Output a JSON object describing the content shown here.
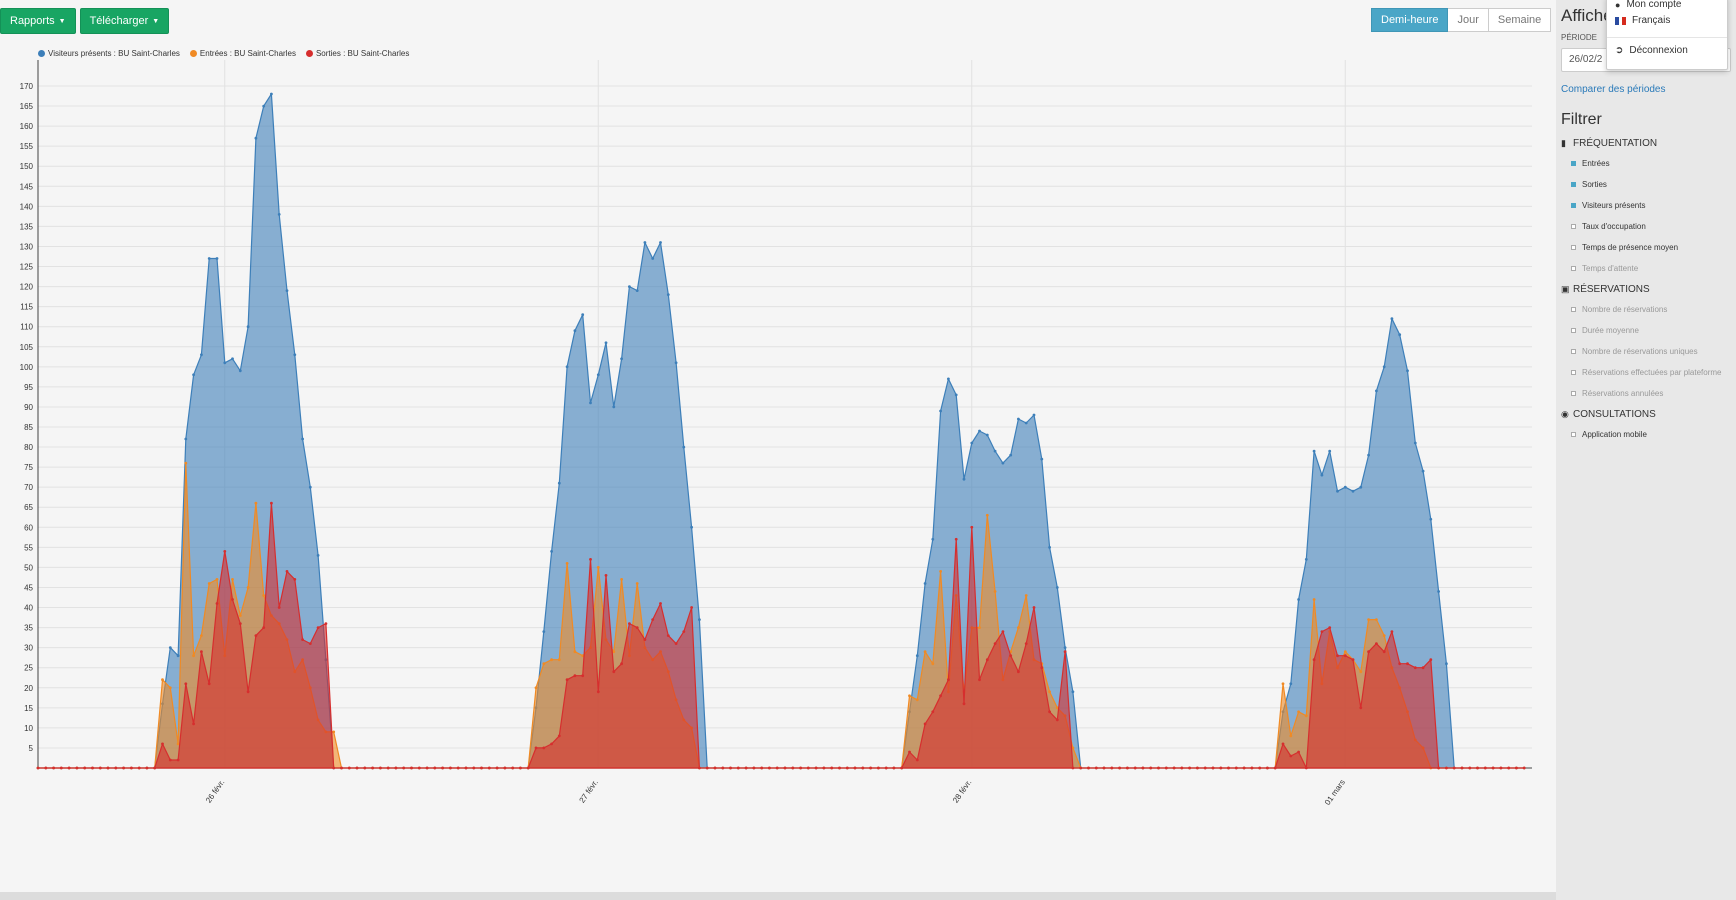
{
  "toolbar": {
    "reports_label": "Rapports",
    "download_label": "Télécharger"
  },
  "granularity": {
    "options": [
      "Demi-heure",
      "Jour",
      "Semaine"
    ],
    "active": "Demi-heure"
  },
  "side": {
    "title": "Affiche",
    "periode_label": "PÉRIODE",
    "periode_value": "26/02/2",
    "compare_link": "Comparer des périodes",
    "filter_title": "Filtrer",
    "sections": [
      {
        "icon": "bar-chart-icon",
        "glyph": "▮",
        "label": "FRÉQUENTATION",
        "options": [
          {
            "label": "Entrées",
            "checked": true,
            "disabled": false
          },
          {
            "label": "Sorties",
            "checked": true,
            "disabled": false
          },
          {
            "label": "Visiteurs présents",
            "checked": true,
            "disabled": false
          },
          {
            "label": "Taux d'occupation",
            "checked": false,
            "disabled": false
          },
          {
            "label": "Temps de présence moyen",
            "checked": false,
            "disabled": false
          },
          {
            "label": "Temps d'attente",
            "checked": false,
            "disabled": true
          }
        ]
      },
      {
        "icon": "user-badge-icon",
        "glyph": "▣",
        "label": "RÉSERVATIONS",
        "options": [
          {
            "label": "Nombre de réservations",
            "checked": false,
            "disabled": true
          },
          {
            "label": "Durée moyenne",
            "checked": false,
            "disabled": true
          },
          {
            "label": "Nombre de réservations uniques",
            "checked": false,
            "disabled": true
          },
          {
            "label": "Réservations effectuées par plateforme",
            "checked": false,
            "disabled": true
          },
          {
            "label": "Réservations annulées",
            "checked": false,
            "disabled": true
          }
        ]
      },
      {
        "icon": "eye-icon",
        "glyph": "◉",
        "label": "CONSULTATIONS",
        "options": [
          {
            "label": "Application mobile",
            "checked": false,
            "disabled": false
          }
        ]
      }
    ]
  },
  "user_menu": {
    "account_label": "Mon compte",
    "language_label": "Français",
    "logout_label": "Déconnexion"
  },
  "colors": {
    "visitors": "#3d7fb9",
    "entries": "#f08a24",
    "exits": "#d62e2e",
    "green": "#18a563",
    "active_seg": "#4aa6c7"
  },
  "chart_data": {
    "type": "area",
    "y_range": [
      0,
      170
    ],
    "y_ticks": [
      5,
      10,
      15,
      20,
      25,
      30,
      35,
      40,
      45,
      50,
      55,
      60,
      65,
      70,
      75,
      80,
      85,
      90,
      95,
      100,
      105,
      110,
      115,
      120,
      125,
      130,
      135,
      140,
      145,
      150,
      155,
      160,
      165,
      170
    ],
    "x_day_labels": [
      "26 févr.",
      "27 févr.",
      "28 févr.",
      "01 mars"
    ],
    "points_per_day": 48,
    "series": [
      {
        "name": "Visiteurs présents : BU Saint-Charles",
        "color": "#3d7fb9",
        "days": [
          [
            0,
            0,
            0,
            0,
            0,
            0,
            0,
            0,
            0,
            0,
            0,
            0,
            0,
            0,
            0,
            0,
            16,
            30,
            28,
            82,
            98,
            103,
            127,
            127,
            101,
            102,
            99,
            110,
            157,
            165,
            168,
            138,
            119,
            103,
            82,
            70,
            53,
            27,
            0,
            0,
            0,
            0,
            0,
            0,
            0,
            0,
            0,
            0
          ],
          [
            0,
            0,
            0,
            0,
            0,
            0,
            0,
            0,
            0,
            0,
            0,
            0,
            0,
            0,
            0,
            0,
            15,
            34,
            54,
            71,
            100,
            109,
            113,
            91,
            98,
            106,
            90,
            102,
            120,
            119,
            131,
            127,
            131,
            118,
            101,
            80,
            60,
            37,
            0,
            0,
            0,
            0,
            0,
            0,
            0,
            0,
            0,
            0
          ],
          [
            0,
            0,
            0,
            0,
            0,
            0,
            0,
            0,
            0,
            0,
            0,
            0,
            0,
            0,
            0,
            0,
            14,
            28,
            46,
            57,
            89,
            97,
            93,
            72,
            81,
            84,
            83,
            79,
            76,
            78,
            87,
            86,
            88,
            77,
            55,
            45,
            30,
            19,
            0,
            0,
            0,
            0,
            0,
            0,
            0,
            0,
            0,
            0
          ],
          [
            0,
            0,
            0,
            0,
            0,
            0,
            0,
            0,
            0,
            0,
            0,
            0,
            0,
            0,
            0,
            0,
            14,
            21,
            42,
            52,
            79,
            73,
            79,
            69,
            70,
            69,
            70,
            78,
            94,
            100,
            112,
            108,
            99,
            81,
            74,
            62,
            44,
            26,
            0,
            0,
            0,
            0,
            0,
            0,
            0,
            0,
            0,
            0
          ]
        ]
      },
      {
        "name": "Entrées : BU Saint-Charles",
        "color": "#f08a24",
        "days": [
          [
            0,
            0,
            0,
            0,
            0,
            0,
            0,
            0,
            0,
            0,
            0,
            0,
            0,
            0,
            0,
            0,
            22,
            20,
            6,
            76,
            28,
            33,
            46,
            47,
            28,
            47,
            38,
            45,
            66,
            43,
            38,
            36,
            32,
            24,
            27,
            20,
            12,
            9,
            9,
            0,
            0,
            0,
            0,
            0,
            0,
            0,
            0,
            0
          ],
          [
            0,
            0,
            0,
            0,
            0,
            0,
            0,
            0,
            0,
            0,
            0,
            0,
            0,
            0,
            0,
            0,
            20,
            26,
            27,
            27,
            51,
            29,
            28,
            30,
            50,
            32,
            29,
            47,
            28,
            46,
            30,
            27,
            29,
            24,
            17,
            12,
            10,
            0,
            0,
            0,
            0,
            0,
            0,
            0,
            0,
            0,
            0,
            0
          ],
          [
            0,
            0,
            0,
            0,
            0,
            0,
            0,
            0,
            0,
            0,
            0,
            0,
            0,
            0,
            0,
            0,
            18,
            17,
            29,
            26,
            49,
            19,
            43,
            19,
            35,
            35,
            63,
            44,
            22,
            29,
            35,
            43,
            27,
            26,
            19,
            15,
            13,
            5,
            0,
            0,
            0,
            0,
            0,
            0,
            0,
            0,
            0,
            0
          ],
          [
            0,
            0,
            0,
            0,
            0,
            0,
            0,
            0,
            0,
            0,
            0,
            0,
            0,
            0,
            0,
            0,
            21,
            8,
            14,
            13,
            42,
            21,
            34,
            25,
            29,
            27,
            24,
            37,
            37,
            33,
            25,
            20,
            14,
            7,
            5,
            0,
            0,
            0,
            0,
            0,
            0,
            0,
            0,
            0,
            0,
            0,
            0,
            0
          ]
        ]
      },
      {
        "name": "Sorties : BU Saint-Charles",
        "color": "#d62e2e",
        "days": [
          [
            0,
            0,
            0,
            0,
            0,
            0,
            0,
            0,
            0,
            0,
            0,
            0,
            0,
            0,
            0,
            0,
            6,
            2,
            2,
            21,
            11,
            29,
            21,
            41,
            54,
            42,
            36,
            19,
            33,
            35,
            66,
            40,
            49,
            47,
            32,
            31,
            35,
            36,
            0,
            0,
            0,
            0,
            0,
            0,
            0,
            0,
            0,
            0
          ],
          [
            0,
            0,
            0,
            0,
            0,
            0,
            0,
            0,
            0,
            0,
            0,
            0,
            0,
            0,
            0,
            0,
            5,
            5,
            6,
            8,
            22,
            23,
            23,
            52,
            19,
            48,
            24,
            26,
            36,
            35,
            32,
            37,
            41,
            33,
            31,
            34,
            40,
            0,
            0,
            0,
            0,
            0,
            0,
            0,
            0,
            0,
            0,
            0
          ],
          [
            0,
            0,
            0,
            0,
            0,
            0,
            0,
            0,
            0,
            0,
            0,
            0,
            0,
            0,
            0,
            0,
            4,
            2,
            11,
            14,
            18,
            22,
            57,
            16,
            60,
            22,
            27,
            31,
            34,
            28,
            24,
            31,
            40,
            25,
            14,
            12,
            29,
            0,
            0,
            0,
            0,
            0,
            0,
            0,
            0,
            0,
            0,
            0
          ],
          [
            0,
            0,
            0,
            0,
            0,
            0,
            0,
            0,
            0,
            0,
            0,
            0,
            0,
            0,
            0,
            0,
            6,
            3,
            4,
            0,
            27,
            34,
            35,
            28,
            28,
            27,
            15,
            29,
            31,
            29,
            34,
            26,
            26,
            25,
            25,
            27,
            0,
            0,
            0,
            0,
            0,
            0,
            0,
            0,
            0,
            0,
            0,
            0
          ]
        ]
      }
    ]
  }
}
